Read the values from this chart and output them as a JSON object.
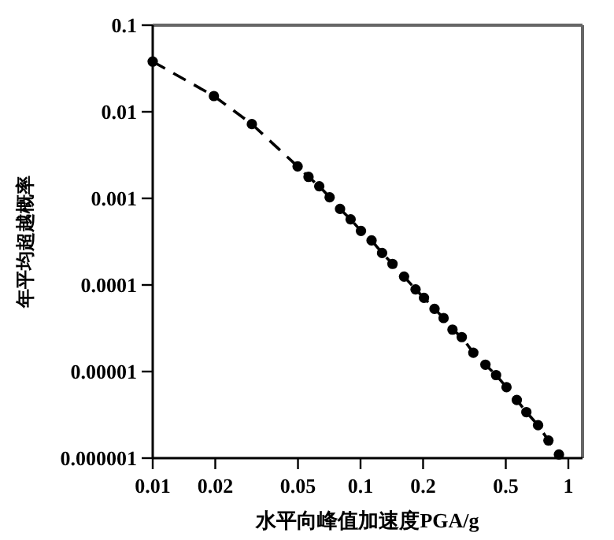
{
  "chart_data": {
    "type": "line",
    "xlabel": "水平向峰值加速度PGA/g",
    "ylabel": "年平均超越概率",
    "log": "xy",
    "xlim": [
      0.01,
      1.17
    ],
    "ylim": [
      1e-06,
      0.1
    ],
    "xticks": [
      0.01,
      0.02,
      0.05,
      0.1,
      0.2,
      0.5,
      1
    ],
    "yticks": [
      {
        "value": 1e-06,
        "label": "0.000001"
      },
      {
        "value": 1e-05,
        "label": "0.00001"
      },
      0.0001,
      0.001,
      0.01,
      0.1
    ],
    "grid": false,
    "marker": "circle",
    "line_style": "dashed",
    "series": [
      {
        "color": "#000000",
        "x": [
          0.01,
          0.0197,
          0.03,
          0.0498,
          0.0562,
          0.0633,
          0.071,
          0.0797,
          0.0896,
          0.1005,
          0.113,
          0.127,
          0.1425,
          0.162,
          0.184,
          0.202,
          0.227,
          0.251,
          0.277,
          0.307,
          0.349,
          0.399,
          0.449,
          0.504,
          0.565,
          0.628,
          0.715,
          0.802,
          0.901
        ],
        "values": [
          0.038,
          0.0152,
          0.0072,
          0.00234,
          0.00177,
          0.00138,
          0.00103,
          0.000755,
          0.000573,
          0.000421,
          0.000327,
          0.000234,
          0.000175,
          0.000125,
          8.9e-05,
          7.1e-05,
          5.3e-05,
          4.15e-05,
          3.05e-05,
          2.5e-05,
          1.65e-05,
          1.2e-05,
          9.1e-06,
          6.6e-06,
          4.7e-06,
          3.4e-06,
          2.4e-06,
          1.6e-06,
          1.1e-06
        ]
      }
    ]
  }
}
